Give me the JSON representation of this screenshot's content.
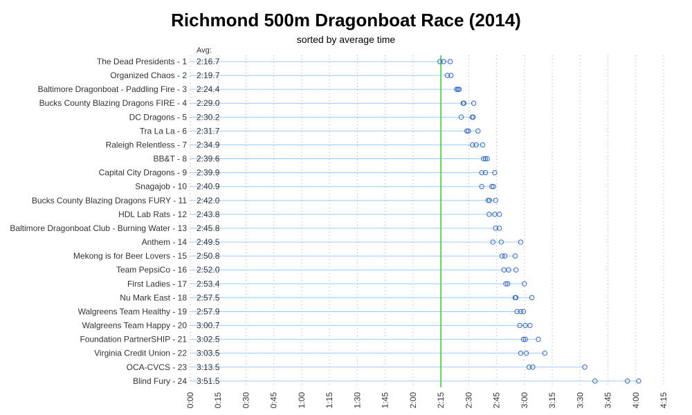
{
  "chart_data": {
    "type": "scatter",
    "title": "Richmond 500m Dragonboat Race (2014)",
    "subtitle": "sorted by average time",
    "avg_header": "Avg:",
    "xlabel": "",
    "ylabel": "",
    "x_unit": "seconds",
    "xlim": [
      0,
      255
    ],
    "x_ticks": [
      0,
      15,
      30,
      45,
      60,
      75,
      90,
      105,
      120,
      135,
      150,
      165,
      180,
      195,
      210,
      225,
      240,
      255
    ],
    "x_tick_labels": [
      "0:00",
      "0:15",
      "0:30",
      "0:45",
      "1:00",
      "1:15",
      "1:30",
      "1:45",
      "2:00",
      "2:15",
      "2:30",
      "2:45",
      "3:00",
      "3:15",
      "3:30",
      "3:45",
      "4:00",
      "4:15"
    ],
    "reference_line": 135,
    "grid": "vertical dotted",
    "colors": {
      "reference_line": "#33cc33",
      "row_line": "#99ccff",
      "points": "#3366cc",
      "grid": "#aaaaaa",
      "text": "#333333"
    },
    "teams": [
      {
        "label": "The Dead Presidents - 1",
        "avg": "2:16.7",
        "times": [
          134.5,
          136.5,
          140.0
        ]
      },
      {
        "label": "Organized Chaos - 2",
        "avg": "2:19.7",
        "times": [
          138.5,
          140.5
        ]
      },
      {
        "label": "Baltimore Dragonboat - Paddling Fire - 3",
        "avg": "2:24.4",
        "times": [
          143.5,
          144.2,
          144.8
        ]
      },
      {
        "label": "Bucks County Blazing Dragons FIRE - 4",
        "avg": "2:29.0",
        "times": [
          147.0,
          147.4,
          152.7
        ]
      },
      {
        "label": "DC Dragons - 5",
        "avg": "2:30.2",
        "times": [
          146.0,
          151.8,
          152.4
        ]
      },
      {
        "label": "Tra La La - 6",
        "avg": "2:31.7",
        "times": [
          149.0,
          149.8,
          155.0
        ]
      },
      {
        "label": "Raleigh Relentless - 7",
        "avg": "2:34.9",
        "times": [
          152.0,
          154.0,
          157.5
        ]
      },
      {
        "label": "BB&T - 8",
        "avg": "2:39.6",
        "times": [
          158.0,
          159.0,
          160.0
        ]
      },
      {
        "label": "Capital City Dragons - 9",
        "avg": "2:39.9",
        "times": [
          157.0,
          159.0,
          164.0
        ]
      },
      {
        "label": "Snagajob - 10",
        "avg": "2:40.9",
        "times": [
          157.0,
          162.5,
          163.3
        ]
      },
      {
        "label": "Bucks County Blazing Dragons FURY - 11",
        "avg": "2:42.0",
        "times": [
          160.5,
          161.2,
          164.5
        ]
      },
      {
        "label": "HDL Lab Rats - 12",
        "avg": "2:43.8",
        "times": [
          161.0,
          164.0,
          166.5
        ]
      },
      {
        "label": "Baltimore Dragonboat Club - Burning Water - 13",
        "avg": "2:45.8",
        "times": [
          164.5,
          166.5
        ]
      },
      {
        "label": "Anthem - 14",
        "avg": "2:49.5",
        "times": [
          163.0,
          167.5,
          178.0
        ]
      },
      {
        "label": "Mekong is for Beer Lovers - 15",
        "avg": "2:50.8",
        "times": [
          168.0,
          169.5,
          175.0
        ]
      },
      {
        "label": "Team PepsiCo - 16",
        "avg": "2:52.0",
        "times": [
          169.0,
          171.5,
          175.5
        ]
      },
      {
        "label": "First Ladies - 17",
        "avg": "2:53.4",
        "times": [
          170.0,
          171.0,
          180.0
        ]
      },
      {
        "label": "Nu Mark East - 18",
        "avg": "2:57.5",
        "times": [
          175.0,
          175.4,
          184.0
        ]
      },
      {
        "label": "Walgreens Team Healthy - 19",
        "avg": "2:57.9",
        "times": [
          176.0,
          178.0,
          179.5
        ]
      },
      {
        "label": "Walgreens Team Happy - 20",
        "avg": "3:00.7",
        "times": [
          177.5,
          180.5,
          183.0
        ]
      },
      {
        "label": "Foundation PartnerSHIP - 21",
        "avg": "3:02.5",
        "times": [
          179.5,
          180.5,
          187.5
        ]
      },
      {
        "label": "Virginia Credit Union - 22",
        "avg": "3:03.5",
        "times": [
          178.0,
          181.0,
          191.0
        ]
      },
      {
        "label": "OCA-CVCS - 23",
        "avg": "3:13.5",
        "times": [
          182.5,
          184.5,
          212.5
        ]
      },
      {
        "label": "Blind Fury - 24",
        "avg": "3:51.5",
        "times": [
          218.0,
          235.5,
          241.5
        ]
      }
    ]
  }
}
